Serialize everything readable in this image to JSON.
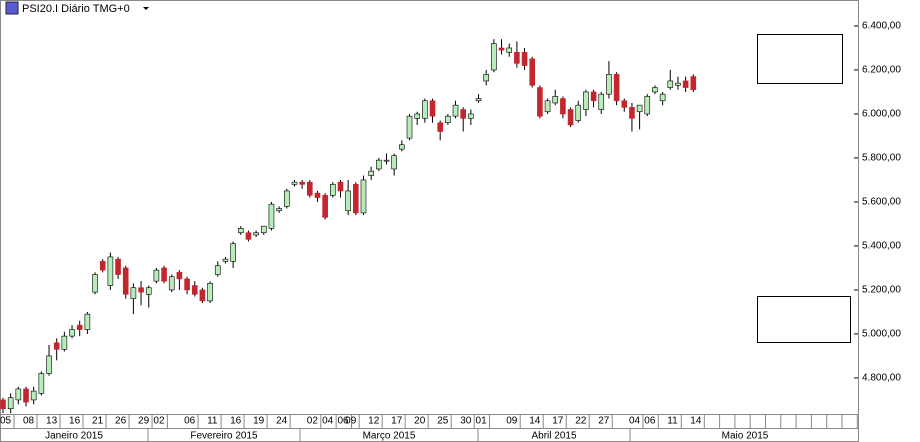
{
  "chart_data": {
    "type": "candlestick",
    "title": "PSI20.I Diário TMG+0",
    "categories": [
      "05",
      null,
      null,
      "08",
      null,
      null,
      "13",
      null,
      null,
      "16",
      null,
      null,
      "21",
      null,
      null,
      "26",
      null,
      null,
      "29",
      null,
      "02",
      null,
      null,
      null,
      "06",
      null,
      null,
      "11",
      null,
      null,
      "16",
      null,
      null,
      "19",
      null,
      null,
      "24",
      null,
      null,
      null,
      "02",
      null,
      "04",
      null,
      "06",
      "09",
      null,
      null,
      "12",
      null,
      null,
      "17",
      null,
      null,
      "20",
      null,
      null,
      "25",
      null,
      null,
      "30",
      null,
      "01",
      null,
      null,
      null,
      "09",
      null,
      null,
      "14",
      null,
      null,
      "17",
      null,
      null,
      "22",
      null,
      null,
      "27",
      null,
      null,
      null,
      "04",
      null,
      "06",
      null,
      null,
      "11",
      null,
      null,
      "14"
    ],
    "months": [
      "Janeiro 2015",
      "Fevereiro 2015",
      "Março 2015",
      "Abril 2015",
      "Maio 2015"
    ],
    "open": [
      4700,
      4660,
      4700,
      4750,
      4700,
      4730,
      4820,
      4960,
      4930,
      4990,
      5040,
      5020,
      5190,
      5330,
      5220,
      5340,
      5300,
      5160,
      5210,
      5180,
      5240,
      5300,
      5200,
      5280,
      5250,
      5220,
      5200,
      5150,
      5270,
      5330,
      5330,
      5460,
      5460,
      5450,
      5460,
      5480,
      5560,
      5580,
      5680,
      5690,
      5690,
      5640,
      5630,
      5630,
      5690,
      5560,
      5680,
      5550,
      5720,
      5750,
      5790,
      5750,
      5840,
      5890,
      5980,
      5980,
      6060,
      5960,
      5960,
      5990,
      6020,
      5980,
      6060,
      6150,
      6200,
      6300,
      6280,
      6280,
      6280,
      6250,
      6120,
      6010,
      6050,
      6070,
      6020,
      5970,
      6020,
      6100,
      6020,
      6090,
      6180,
      6060,
      6030,
      6010,
      6000,
      6100,
      6060,
      6120,
      6130,
      6150,
      6170
    ],
    "high": [
      4710,
      4730,
      4760,
      4760,
      4760,
      4830,
      4950,
      4980,
      5010,
      5040,
      5060,
      5100,
      5280,
      5340,
      5370,
      5350,
      5310,
      5230,
      5240,
      5220,
      5300,
      5310,
      5270,
      5290,
      5260,
      5240,
      5210,
      5240,
      5330,
      5350,
      5420,
      5490,
      5470,
      5470,
      5490,
      5600,
      5580,
      5660,
      5700,
      5700,
      5700,
      5650,
      5640,
      5690,
      5700,
      5700,
      5690,
      5720,
      5760,
      5800,
      5820,
      5820,
      5880,
      6000,
      6010,
      6070,
      6070,
      5970,
      6000,
      6060,
      6030,
      6020,
      6090,
      6200,
      6340,
      6340,
      6320,
      6330,
      6300,
      6260,
      6130,
      6070,
      6110,
      6080,
      6030,
      6060,
      6110,
      6110,
      6100,
      6240,
      6190,
      6070,
      6050,
      6040,
      6090,
      6130,
      6100,
      6200,
      6170,
      6170,
      6180
    ],
    "low": [
      4640,
      4640,
      4680,
      4670,
      4680,
      4720,
      4810,
      4880,
      4920,
      4980,
      4990,
      5000,
      5180,
      5280,
      5200,
      5250,
      5160,
      5090,
      5130,
      5120,
      5230,
      5230,
      5190,
      5200,
      5180,
      5170,
      5140,
      5140,
      5260,
      5320,
      5300,
      5450,
      5420,
      5440,
      5450,
      5470,
      5550,
      5570,
      5670,
      5660,
      5620,
      5600,
      5520,
      5620,
      5620,
      5540,
      5540,
      5540,
      5700,
      5740,
      5770,
      5720,
      5830,
      5880,
      5950,
      5960,
      5960,
      5880,
      5950,
      5980,
      5920,
      5950,
      6050,
      6130,
      6190,
      6270,
      6260,
      6210,
      6200,
      6120,
      5980,
      6000,
      6040,
      5980,
      5940,
      5960,
      5990,
      6030,
      6000,
      6070,
      6040,
      6010,
      5920,
      5930,
      5990,
      6090,
      6040,
      6110,
      6110,
      6100,
      6100
    ],
    "close": [
      4660,
      4710,
      4750,
      4690,
      4740,
      4820,
      4900,
      4930,
      4990,
      5020,
      5020,
      5090,
      5270,
      5290,
      5350,
      5270,
      5180,
      5210,
      5190,
      5210,
      5290,
      5240,
      5260,
      5250,
      5200,
      5180,
      5150,
      5230,
      5310,
      5340,
      5410,
      5480,
      5430,
      5460,
      5490,
      5590,
      5570,
      5650,
      5690,
      5680,
      5630,
      5620,
      5530,
      5680,
      5650,
      5650,
      5550,
      5700,
      5740,
      5790,
      5790,
      5810,
      5860,
      5990,
      6000,
      6060,
      5990,
      5920,
      5990,
      6040,
      5980,
      6000,
      6070,
      6180,
      6320,
      6290,
      6300,
      6230,
      6220,
      6130,
      5990,
      6060,
      6080,
      6000,
      5950,
      6040,
      6100,
      6060,
      6090,
      6180,
      6060,
      6030,
      5980,
      6040,
      6080,
      6120,
      6090,
      6150,
      6140,
      6120,
      6110
    ],
    "up_color": "#b8ecb8",
    "down_color": "#c4262e",
    "ylim": [
      4636,
      6518
    ],
    "yticks": [
      {
        "value": 4800,
        "label": "4.800,00"
      },
      {
        "value": 5000,
        "label": "5.000,00"
      },
      {
        "value": 5200,
        "label": "5.200,00"
      },
      {
        "value": 5400,
        "label": "5.400,00"
      },
      {
        "value": 5600,
        "label": "5.600,00"
      },
      {
        "value": 5800,
        "label": "5.800,00"
      },
      {
        "value": 6000,
        "label": "6.000,00"
      },
      {
        "value": 6200,
        "label": "6.200,00"
      },
      {
        "value": 6400,
        "label": "6.400,00"
      }
    ]
  }
}
